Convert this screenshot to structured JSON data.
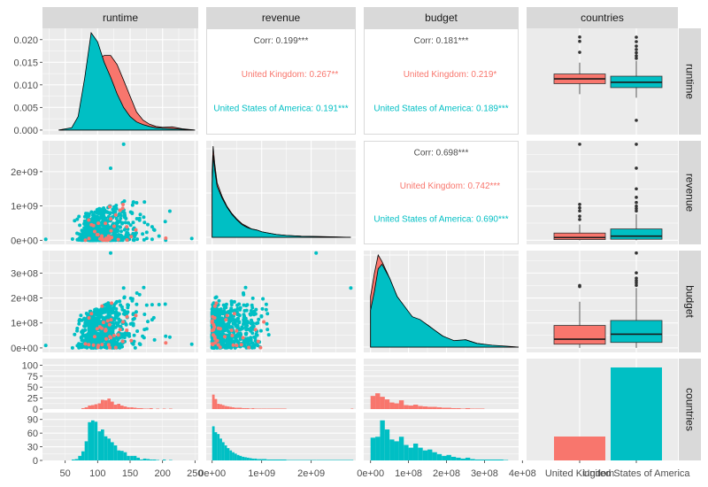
{
  "chart_data": {
    "type": "scatter",
    "title": "",
    "variables": [
      "runtime",
      "revenue",
      "budget",
      "countries"
    ],
    "groups": [
      {
        "name": "United Kingdom",
        "color": "#F8766D"
      },
      {
        "name": "United States of America",
        "color": "#00BFC4"
      }
    ],
    "axis_ticks": {
      "runtime_x": [
        "50",
        "100",
        "150",
        "200",
        "250"
      ],
      "revenue_x": [
        "0e+00",
        "1e+09",
        "2e+09"
      ],
      "budget_x": [
        "0e+00",
        "1e+08",
        "2e+08",
        "3e+08",
        "4e+08"
      ],
      "countries_x": [
        "United Kingdom",
        "United States of America"
      ],
      "runtime_density_y": [
        "0.000",
        "0.005",
        "0.010",
        "0.015",
        "0.020"
      ],
      "revenue_y": [
        "0e+00",
        "1e+09",
        "2e+09"
      ],
      "budget_y": [
        "0e+00",
        "1e+08",
        "2e+08",
        "3e+08"
      ],
      "count_uk_y": [
        "0",
        "25",
        "50",
        "75",
        "100"
      ],
      "count_us_y": [
        "0",
        "30",
        "60",
        "90"
      ]
    },
    "axis_ranges": {
      "runtime": [
        15,
        255
      ],
      "revenue": [
        -120000000.0,
        2900000000.0
      ],
      "budget": [
        -18000000.0,
        390000000.0
      ],
      "runtime_density": [
        -0.001,
        0.0225
      ]
    },
    "correlations": [
      {
        "pair": "runtime-revenue",
        "overall": "Corr: 0.199***",
        "uk": "United Kingdom: 0.267**",
        "us": "United States of America: 0.191***"
      },
      {
        "pair": "runtime-budget",
        "overall": "Corr: 0.181***",
        "uk": "United Kingdom: 0.219*",
        "us": "United States of America: 0.189***"
      },
      {
        "pair": "revenue-budget",
        "overall": "Corr: 0.698***",
        "uk": "United Kingdom: 0.742***",
        "us": "United States of America: 0.690***"
      }
    ],
    "country_counts": {
      "United Kingdom": 27,
      "United States of America": 105
    },
    "country_count_ylim": [
      0,
      115
    ],
    "boxplots": {
      "runtime": {
        "United Kingdom": {
          "q1": 104,
          "median": 115,
          "q3": 126,
          "lo": 80,
          "hi": 152,
          "outliers": [
            175,
            200,
            210
          ]
        },
        "United States of America": {
          "q1": 95,
          "median": 107,
          "q3": 121,
          "lo": 72,
          "hi": 156,
          "outliers": [
            20,
            162,
            168,
            175,
            182,
            190,
            200,
            210
          ]
        }
      },
      "revenue": {
        "United Kingdom": {
          "q1": 20000000.0,
          "median": 80000000.0,
          "q3": 210000000.0,
          "lo": 0,
          "hi": 460000000.0,
          "outliers": [
            600000000.0,
            700000000.0,
            850000000.0,
            950000000.0,
            1050000000.0,
            2800000000.0
          ]
        },
        "United States of America": {
          "q1": 30000000.0,
          "median": 120000000.0,
          "q3": 330000000.0,
          "lo": 0,
          "hi": 760000000.0,
          "outliers": [
            850000000.0,
            930000000.0,
            1000000000.0,
            1100000000.0,
            1250000000.0,
            1500000000.0,
            2100000000.0,
            2800000000.0
          ]
        }
      },
      "budget": {
        "United Kingdom": {
          "q1": 15000000.0,
          "median": 35000000.0,
          "q3": 90000000.0,
          "lo": 0,
          "hi": 185000000.0,
          "outliers": [
            245000000.0,
            250000000.0
          ]
        },
        "United States of America": {
          "q1": 22000000.0,
          "median": 55000000.0,
          "q3": 110000000.0,
          "lo": 0,
          "hi": 240000000.0,
          "outliers": [
            250000000.0,
            260000000.0,
            270000000.0,
            280000000.0,
            300000000.0,
            380000000.0
          ]
        }
      }
    },
    "runtime_density": {
      "x": [
        40,
        60,
        70,
        80,
        90,
        100,
        110,
        120,
        130,
        140,
        150,
        160,
        170,
        180,
        190,
        200,
        215,
        230,
        250
      ],
      "United Kingdom": [
        0,
        0.0003,
        0.002,
        0.006,
        0.012,
        0.0155,
        0.0165,
        0.0165,
        0.0145,
        0.011,
        0.0075,
        0.004,
        0.0022,
        0.0013,
        0.0008,
        0.0006,
        0.0007,
        0.0003,
        0
      ],
      "United States of America": [
        0,
        0.0005,
        0.003,
        0.0115,
        0.0215,
        0.0195,
        0.015,
        0.0117,
        0.008,
        0.005,
        0.003,
        0.0018,
        0.0012,
        0.0008,
        0.0005,
        0.0004,
        0.0003,
        0.0002,
        0
      ]
    },
    "revenue_density": {
      "x": [
        0,
        20000000.0,
        50000000.0,
        100000000.0,
        200000000.0,
        300000000.0,
        400000000.0,
        500000000.0,
        600000000.0,
        700000000.0,
        800000000.0,
        900000000.0,
        1000000000.0,
        1100000000.0,
        1300000000.0,
        1500000000.0,
        1800000000.0,
        2200000000.0,
        2800000000.0
      ],
      "United Kingdom": [
        0.72,
        1.0,
        0.82,
        0.6,
        0.45,
        0.34,
        0.26,
        0.2,
        0.15,
        0.12,
        0.09,
        0.08,
        0.06,
        0.05,
        0.03,
        0.02,
        0.012,
        0.006,
        0
      ],
      "United States of America": [
        0.58,
        0.9,
        0.75,
        0.56,
        0.43,
        0.33,
        0.25,
        0.19,
        0.14,
        0.11,
        0.09,
        0.08,
        0.06,
        0.05,
        0.03,
        0.02,
        0.012,
        0.008,
        0
      ]
    },
    "budget_density": {
      "x": [
        0,
        10000000.0,
        20000000.0,
        30000000.0,
        50000000.0,
        70000000.0,
        90000000.0,
        110000000.0,
        130000000.0,
        150000000.0,
        170000000.0,
        190000000.0,
        220000000.0,
        250000000.0,
        280000000.0,
        320000000.0,
        360000000.0,
        390000000.0
      ],
      "United Kingdom": [
        0.55,
        0.8,
        1.0,
        0.93,
        0.75,
        0.55,
        0.42,
        0.33,
        0.28,
        0.24,
        0.18,
        0.12,
        0.06,
        0.08,
        0.04,
        0.015,
        0.005,
        0
      ],
      "United States of America": [
        0.4,
        0.6,
        0.85,
        0.9,
        0.75,
        0.55,
        0.44,
        0.33,
        0.3,
        0.24,
        0.18,
        0.12,
        0.07,
        0.08,
        0.04,
        0.02,
        0.01,
        0
      ]
    },
    "runtime_hist": {
      "bin_starts": [
        60,
        65,
        70,
        75,
        80,
        85,
        90,
        95,
        100,
        105,
        110,
        115,
        120,
        125,
        130,
        135,
        140,
        145,
        150,
        155,
        160,
        165,
        170,
        175,
        180,
        185,
        190,
        195,
        200,
        205,
        210
      ],
      "United Kingdom": [
        0,
        0,
        0,
        2,
        4,
        8,
        9,
        11,
        13,
        21,
        20,
        24,
        17,
        10,
        12,
        8,
        6,
        4,
        4,
        3,
        2,
        2,
        1,
        1,
        2,
        0,
        1,
        0,
        1,
        0,
        1
      ],
      "United States of America": [
        2,
        3,
        10,
        20,
        42,
        84,
        88,
        85,
        64,
        68,
        53,
        48,
        40,
        33,
        22,
        21,
        18,
        10,
        10,
        10,
        6,
        2,
        4,
        3,
        2,
        2,
        1,
        0,
        2,
        0,
        1
      ]
    },
    "revenue_hist": {
      "bin_starts": [
        0,
        50000000.0,
        100000000.0,
        150000000.0,
        200000000.0,
        250000000.0,
        300000000.0,
        350000000.0,
        400000000.0,
        450000000.0,
        500000000.0,
        550000000.0,
        600000000.0,
        650000000.0,
        700000000.0,
        750000000.0,
        800000000.0,
        850000000.0,
        900000000.0,
        950000000.0,
        1000000000.0,
        1100000000.0,
        1500000000.0,
        2100000000.0,
        2800000000.0
      ],
      "United Kingdom": [
        33,
        23,
        12,
        11,
        9,
        7,
        6,
        5,
        4,
        3,
        3,
        3,
        2,
        2,
        2,
        1,
        2,
        1,
        1,
        1,
        1,
        1,
        0,
        0,
        1
      ],
      "United States of America": [
        75,
        62,
        58,
        48,
        40,
        33,
        27,
        22,
        18,
        15,
        12,
        10,
        8,
        7,
        6,
        5,
        4,
        4,
        3,
        3,
        3,
        2,
        1,
        1,
        1
      ]
    },
    "budget_hist": {
      "bin_starts": [
        0,
        12500000.0,
        25000000.0,
        37500000.0,
        50000000.0,
        62500000.0,
        75000000.0,
        87500000.0,
        100000000.0,
        112500000.0,
        125000000.0,
        137500000.0,
        150000000.0,
        162500000.0,
        175000000.0,
        187500000.0,
        200000000.0,
        212500000.0,
        225000000.0,
        237500000.0,
        250000000.0,
        262500000.0,
        275000000.0,
        300000000.0,
        350000000.0
      ],
      "United Kingdom": [
        30,
        36,
        28,
        22,
        15,
        13,
        20,
        9,
        8,
        10,
        7,
        6,
        5,
        5,
        4,
        3,
        3,
        2,
        2,
        1,
        2,
        1,
        1,
        0,
        0
      ],
      "United States of America": [
        50,
        52,
        88,
        68,
        46,
        42,
        52,
        34,
        28,
        37,
        28,
        22,
        24,
        18,
        14,
        10,
        12,
        8,
        6,
        4,
        6,
        3,
        2,
        2,
        1
      ]
    }
  }
}
